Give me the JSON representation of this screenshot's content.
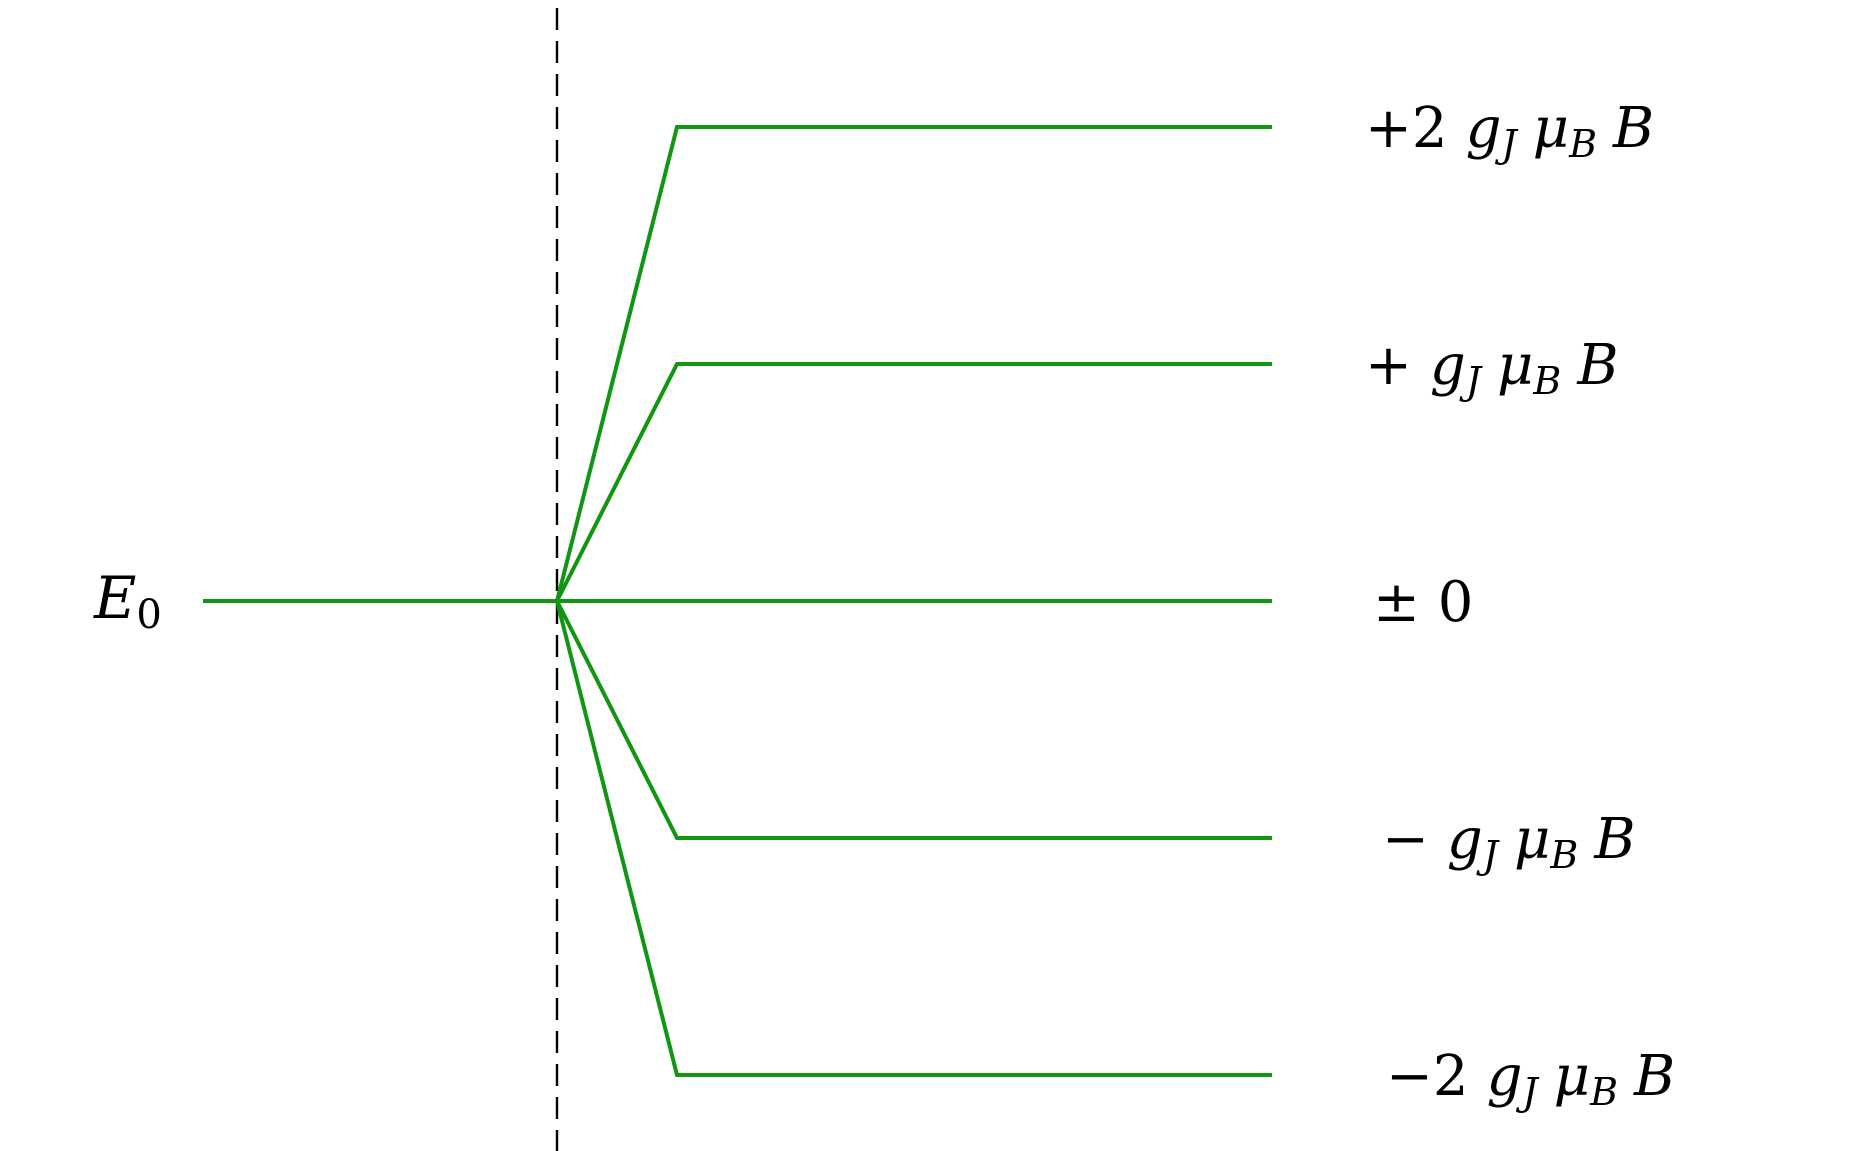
{
  "colors": {
    "level_line": "#119611",
    "axis_line": "#000000",
    "background": "#ffffff"
  },
  "diagram": {
    "unperturbed_level": {
      "symbol": "E",
      "subscript": "0"
    },
    "levels": [
      {
        "sign": "+2",
        "shift_multiple": 2,
        "g": "g",
        "g_sub": "J",
        "mu": "μ",
        "mu_sub": "B",
        "field": "B"
      },
      {
        "sign": "+",
        "shift_multiple": 1,
        "g": "g",
        "g_sub": "J",
        "mu": "μ",
        "mu_sub": "B",
        "field": "B"
      },
      {
        "sign": "± 0",
        "shift_multiple": 0,
        "g": "",
        "g_sub": "",
        "mu": "",
        "mu_sub": "",
        "field": ""
      },
      {
        "sign": "−",
        "shift_multiple": -1,
        "g": "g",
        "g_sub": "J",
        "mu": "μ",
        "mu_sub": "B",
        "field": "B"
      },
      {
        "sign": "−2",
        "shift_multiple": -2,
        "g": "g",
        "g_sub": "J",
        "mu": "μ",
        "mu_sub": "B",
        "field": "B"
      }
    ]
  }
}
